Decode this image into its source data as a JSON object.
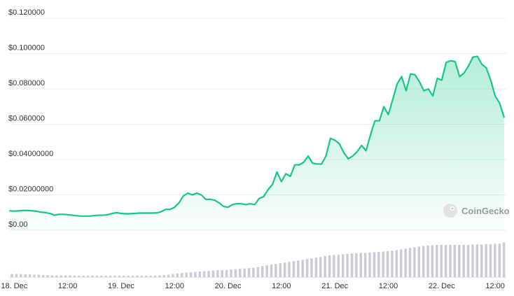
{
  "chart_data": {
    "type": "area",
    "title": "",
    "xlabel": "",
    "ylabel": "",
    "y_ticks": [
      {
        "label": "$0.120000",
        "value": 0.12
      },
      {
        "label": "$0.100000",
        "value": 0.1
      },
      {
        "label": "$0.080000",
        "value": 0.08
      },
      {
        "label": "$0.060000",
        "value": 0.06
      },
      {
        "label": "$0.04000000",
        "value": 0.04
      },
      {
        "label": "$0.02000000",
        "value": 0.02
      },
      {
        "label": "$0.00",
        "value": 0.0
      }
    ],
    "ylim": [
      0,
      0.128
    ],
    "x_ticks": [
      {
        "label": "18. Dec",
        "value": 0
      },
      {
        "label": "12:00",
        "value": 12
      },
      {
        "label": "19. Dec",
        "value": 24
      },
      {
        "label": "12:00",
        "value": 36
      },
      {
        "label": "20. Dec",
        "value": 48
      },
      {
        "label": "12:00",
        "value": 60
      },
      {
        "label": "21. Dec",
        "value": 72
      },
      {
        "label": "12:00",
        "value": 84
      },
      {
        "label": "22. Dec",
        "value": 96
      },
      {
        "label": "12:00",
        "value": 108
      }
    ],
    "xlim": [
      -1,
      110.5
    ],
    "grid": true,
    "line_color": "#16c784",
    "fill_color": "#16c784",
    "volume_color": "#c9ccd6",
    "series": [
      {
        "values": [
          [
            -1,
            0.011
          ],
          [
            0,
            0.0108
          ],
          [
            1,
            0.011
          ],
          [
            2,
            0.0112
          ],
          [
            3,
            0.0112
          ],
          [
            4,
            0.011
          ],
          [
            5,
            0.0108
          ],
          [
            6,
            0.0102
          ],
          [
            7,
            0.01
          ],
          [
            8,
            0.0095
          ],
          [
            9,
            0.0085
          ],
          [
            10,
            0.009
          ],
          [
            11,
            0.009
          ],
          [
            12,
            0.0088
          ],
          [
            13,
            0.0085
          ],
          [
            14,
            0.0082
          ],
          [
            15,
            0.008
          ],
          [
            16,
            0.008
          ],
          [
            17,
            0.008
          ],
          [
            18,
            0.0083
          ],
          [
            19,
            0.0085
          ],
          [
            20,
            0.0085
          ],
          [
            21,
            0.0088
          ],
          [
            22,
            0.0095
          ],
          [
            23,
            0.01
          ],
          [
            24,
            0.0095
          ],
          [
            25,
            0.0093
          ],
          [
            26,
            0.0093
          ],
          [
            27,
            0.0095
          ],
          [
            28,
            0.0097
          ],
          [
            29,
            0.0097
          ],
          [
            30,
            0.0097
          ],
          [
            31,
            0.0097
          ],
          [
            32,
            0.0098
          ],
          [
            33,
            0.0105
          ],
          [
            34,
            0.0118
          ],
          [
            35,
            0.0118
          ],
          [
            36,
            0.013
          ],
          [
            37,
            0.0155
          ],
          [
            38,
            0.0195
          ],
          [
            39,
            0.021
          ],
          [
            40,
            0.02
          ],
          [
            41,
            0.021
          ],
          [
            42,
            0.02
          ],
          [
            43,
            0.0175
          ],
          [
            44,
            0.0175
          ],
          [
            45,
            0.017
          ],
          [
            46,
            0.0155
          ],
          [
            47,
            0.0135
          ],
          [
            48,
            0.013
          ],
          [
            49,
            0.0145
          ],
          [
            50,
            0.015
          ],
          [
            51,
            0.015
          ],
          [
            52,
            0.0145
          ],
          [
            53,
            0.015
          ],
          [
            54,
            0.0145
          ],
          [
            55,
            0.018
          ],
          [
            56,
            0.019
          ],
          [
            57,
            0.023
          ],
          [
            58,
            0.026
          ],
          [
            59,
            0.033
          ],
          [
            60,
            0.0275
          ],
          [
            61,
            0.032
          ],
          [
            62,
            0.0305
          ],
          [
            63,
            0.037
          ],
          [
            64,
            0.037
          ],
          [
            65,
            0.0385
          ],
          [
            66,
            0.042
          ],
          [
            67,
            0.038
          ],
          [
            68,
            0.0375
          ],
          [
            69,
            0.0375
          ],
          [
            70,
            0.042
          ],
          [
            71,
            0.052
          ],
          [
            72,
            0.051
          ],
          [
            73,
            0.049
          ],
          [
            74,
            0.044
          ],
          [
            75,
            0.0405
          ],
          [
            76,
            0.042
          ],
          [
            77,
            0.0445
          ],
          [
            78,
            0.048
          ],
          [
            79,
            0.045
          ],
          [
            80,
            0.054
          ],
          [
            81,
            0.062
          ],
          [
            82,
            0.062
          ],
          [
            83,
            0.07
          ],
          [
            84,
            0.0655
          ],
          [
            85,
            0.074
          ],
          [
            86,
            0.083
          ],
          [
            87,
            0.087
          ],
          [
            88,
            0.079
          ],
          [
            89,
            0.0885
          ],
          [
            90,
            0.088
          ],
          [
            91,
            0.084
          ],
          [
            92,
            0.079
          ],
          [
            93,
            0.08
          ],
          [
            94,
            0.076
          ],
          [
            95,
            0.086
          ],
          [
            96,
            0.085
          ],
          [
            97,
            0.095
          ],
          [
            98,
            0.096
          ],
          [
            99,
            0.0955
          ],
          [
            100,
            0.087
          ],
          [
            101,
            0.089
          ],
          [
            102,
            0.093
          ],
          [
            103,
            0.098
          ],
          [
            104,
            0.0985
          ],
          [
            105,
            0.094
          ],
          [
            106,
            0.092
          ],
          [
            107,
            0.085
          ],
          [
            108,
            0.076
          ],
          [
            109,
            0.072
          ],
          [
            110,
            0.064
          ]
        ]
      }
    ],
    "volume": {
      "values": [
        0.9,
        0.9,
        0.9,
        0.8,
        0.8,
        0.7,
        0.7,
        0.6,
        0.6,
        0.5,
        0.5,
        0.5,
        0.5,
        0.5,
        0.5,
        0.4,
        0.4,
        0.4,
        0.4,
        0.4,
        0.4,
        0.4,
        0.4,
        0.4,
        0.4,
        0.4,
        0.4,
        0.4,
        0.4,
        0.4,
        0.4,
        0.4,
        0.45,
        0.5,
        0.6,
        0.7,
        0.9,
        1.0,
        1.2,
        1.3,
        1.4,
        1.5,
        1.6,
        1.7,
        1.8,
        1.9,
        2.0,
        2.0,
        2.1,
        2.2,
        2.3,
        2.4,
        2.5,
        2.6,
        2.7,
        2.9,
        3.2,
        3.4,
        3.6,
        3.8,
        4.0,
        4.2,
        4.4,
        4.6,
        4.8,
        5.0,
        5.2,
        5.4,
        5.6,
        5.8,
        6.1,
        6.3,
        6.4,
        6.5,
        6.6,
        6.7,
        6.8,
        6.9,
        7.0,
        7.0,
        7.1,
        7.2,
        7.3,
        7.4,
        7.5,
        7.6,
        7.8,
        8.0,
        8.2,
        8.4,
        8.6,
        8.8,
        9.0,
        9.1,
        9.2,
        9.3,
        9.3,
        9.3,
        9.3,
        9.3,
        9.3,
        9.3,
        9.3,
        9.4,
        9.4,
        9.4,
        9.5,
        9.5,
        9.6,
        9.7,
        10.0
      ],
      "max": 10.5
    }
  },
  "watermark": {
    "icon": "coingecko-logo-icon",
    "text": "CoinGecko"
  }
}
